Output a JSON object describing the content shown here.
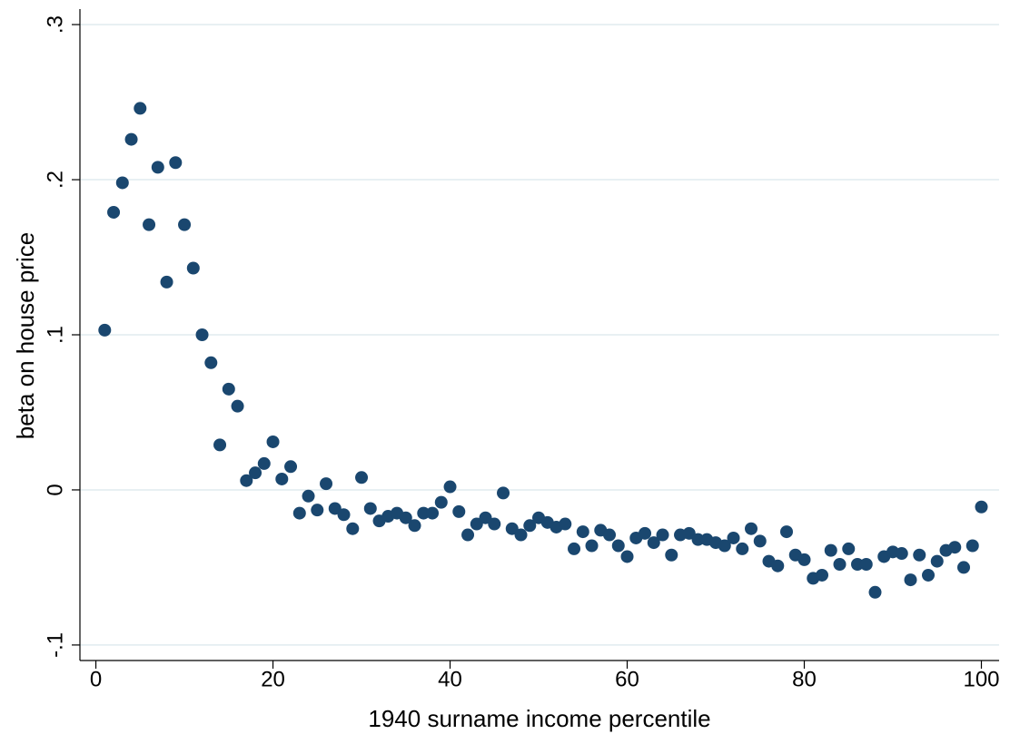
{
  "chart_data": {
    "type": "scatter",
    "x_label": "1940 surname income percentile",
    "y_label": "beta on house price",
    "color": "#1a476f",
    "grid": true,
    "xlim": [
      -1.8,
      102
    ],
    "ylim": [
      -0.11,
      0.31
    ],
    "xticks": [
      0,
      20,
      40,
      60,
      80,
      100
    ],
    "yticks": [
      {
        "value": -0.1,
        "label": "-.1"
      },
      0,
      {
        "value": 0.1,
        "label": ".1"
      },
      {
        "value": 0.2,
        "label": ".2"
      },
      {
        "value": 0.3,
        "label": ".3"
      }
    ],
    "x": [
      1,
      2,
      3,
      4,
      5,
      6,
      7,
      8,
      9,
      10,
      11,
      12,
      13,
      14,
      15,
      16,
      17,
      18,
      19,
      20,
      21,
      22,
      23,
      24,
      25,
      26,
      27,
      28,
      29,
      30,
      31,
      32,
      33,
      34,
      35,
      36,
      37,
      38,
      39,
      40,
      41,
      42,
      43,
      44,
      45,
      46,
      47,
      48,
      49,
      50,
      51,
      52,
      53,
      54,
      55,
      56,
      57,
      58,
      59,
      60,
      61,
      62,
      63,
      64,
      65,
      66,
      67,
      68,
      69,
      70,
      71,
      72,
      73,
      74,
      75,
      76,
      77,
      78,
      79,
      80,
      81,
      82,
      83,
      84,
      85,
      86,
      87,
      88,
      89,
      90,
      91,
      92,
      93,
      94,
      95,
      96,
      97,
      98,
      99,
      100
    ],
    "values": [
      0.103,
      0.179,
      0.198,
      0.226,
      0.246,
      0.171,
      0.208,
      0.134,
      0.211,
      0.171,
      0.143,
      0.1,
      0.082,
      0.029,
      0.065,
      0.054,
      0.006,
      0.011,
      0.017,
      0.031,
      0.007,
      0.015,
      -0.015,
      -0.004,
      -0.013,
      0.004,
      -0.012,
      -0.016,
      -0.025,
      0.008,
      -0.012,
      -0.02,
      -0.017,
      -0.015,
      -0.018,
      -0.023,
      -0.015,
      -0.015,
      -0.008,
      0.002,
      -0.014,
      -0.029,
      -0.022,
      -0.018,
      -0.022,
      -0.002,
      -0.025,
      -0.029,
      -0.023,
      -0.018,
      -0.021,
      -0.024,
      -0.022,
      -0.038,
      -0.027,
      -0.036,
      -0.026,
      -0.029,
      -0.036,
      -0.043,
      -0.031,
      -0.028,
      -0.034,
      -0.029,
      -0.042,
      -0.029,
      -0.028,
      -0.032,
      -0.032,
      -0.034,
      -0.036,
      -0.031,
      -0.038,
      -0.025,
      -0.033,
      -0.046,
      -0.049,
      -0.027,
      -0.042,
      -0.045,
      -0.057,
      -0.055,
      -0.039,
      -0.048,
      -0.038,
      -0.048,
      -0.048,
      -0.066,
      -0.043,
      -0.04,
      -0.041,
      -0.058,
      -0.042,
      -0.055,
      -0.046,
      -0.039,
      -0.037,
      -0.05,
      -0.036,
      -0.011
    ]
  }
}
